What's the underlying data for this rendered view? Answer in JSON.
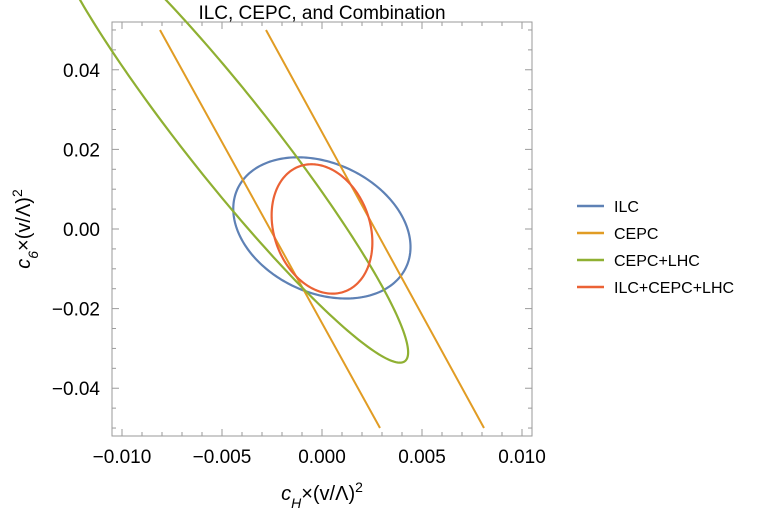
{
  "chart_data": {
    "type": "line",
    "title": "ILC, CEPC, and Combination",
    "xlabel": {
      "main": "c",
      "sub": "H",
      "rest": "×(v/Λ)",
      "sup": "2"
    },
    "ylabel": {
      "main": "c",
      "sub": "6",
      "rest": "×(v/Λ)",
      "sup": "2"
    },
    "xlim": [
      -0.0105,
      0.0105
    ],
    "ylim": [
      -0.052,
      0.052
    ],
    "xticks": [
      {
        "value": -0.01,
        "label": "−0.010"
      },
      {
        "value": -0.005,
        "label": "−0.005"
      },
      {
        "value": 0.0,
        "label": "0.000"
      },
      {
        "value": 0.005,
        "label": "0.005"
      },
      {
        "value": 0.01,
        "label": "0.010"
      }
    ],
    "yticks": [
      {
        "value": -0.04,
        "label": "−0.04"
      },
      {
        "value": -0.02,
        "label": "−0.02"
      },
      {
        "value": 0.0,
        "label": "0.00"
      },
      {
        "value": 0.02,
        "label": "0.02"
      },
      {
        "value": 0.04,
        "label": "0.04"
      }
    ],
    "legend_position": "right",
    "series": [
      {
        "name": "ILC",
        "color": "#5e81b5",
        "shape": "ellipse",
        "points": [
          [
            -0.0044,
            0.0052
          ],
          [
            -0.0034,
            0.0148
          ],
          [
            -0.0012,
            0.0181
          ],
          [
            0.0044,
            -0.004
          ],
          [
            0.003,
            -0.0158
          ],
          [
            0.0008,
            -0.0172
          ],
          [
            -0.0043,
            0.0
          ]
        ]
      },
      {
        "name": "CEPC",
        "color": "#e19c24",
        "shape": "band",
        "lines": [
          [
            [
              -0.0081,
              0.05
            ],
            [
              0.0029,
              -0.05
            ]
          ],
          [
            [
              -0.0028,
              0.05
            ],
            [
              0.0081,
              -0.05
            ]
          ]
        ]
      },
      {
        "name": "CEPC+LHC",
        "color": "#8fb032",
        "shape": "ellipse",
        "points": [
          [
            -0.0036,
            0.0323
          ],
          [
            0.0006,
            0.004
          ],
          [
            0.0044,
            -0.0293
          ],
          [
            0.0035,
            -0.0325
          ],
          [
            -0.0045,
            0.0048
          ],
          [
            -0.0028,
            0.0293
          ]
        ]
      },
      {
        "name": "ILC+CEPC+LHC",
        "color": "#eb6235",
        "shape": "ellipse",
        "points": [
          [
            -0.0013,
            0.0156
          ],
          [
            -0.0023,
            0.0085
          ],
          [
            -0.0025,
            0.0
          ],
          [
            0.0025,
            -0.0085
          ],
          [
            0.0011,
            -0.0155
          ],
          [
            0.0024,
            -0.0045
          ]
        ]
      }
    ]
  }
}
